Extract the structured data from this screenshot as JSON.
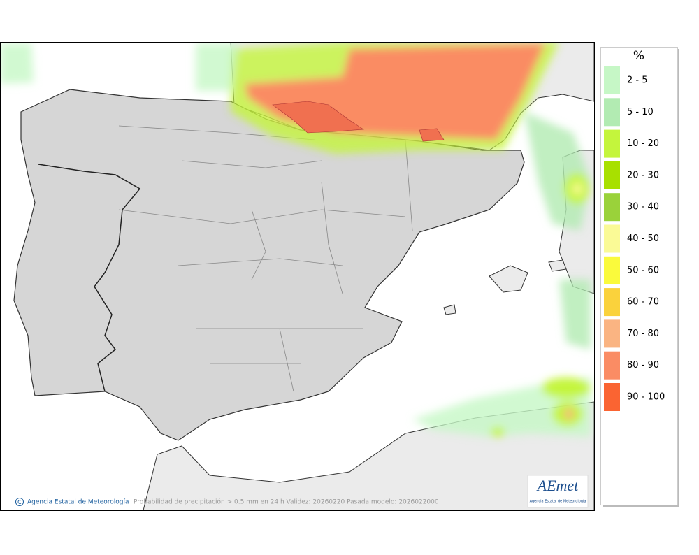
{
  "legend": {
    "title": "%",
    "items": [
      {
        "label": "2 - 5",
        "color": "#c6f7c6"
      },
      {
        "label": "5 - 10",
        "color": "#b2ebb2"
      },
      {
        "label": "10 - 20",
        "color": "#c4f53c"
      },
      {
        "label": "20 - 30",
        "color": "#a8e000"
      },
      {
        "label": "30 - 40",
        "color": "#9ad23a"
      },
      {
        "label": "40 - 50",
        "color": "#fafa96"
      },
      {
        "label": "50 - 60",
        "color": "#fafa3c"
      },
      {
        "label": "60 - 70",
        "color": "#fad23c"
      },
      {
        "label": "70 - 80",
        "color": "#fab482"
      },
      {
        "label": "80 - 90",
        "color": "#fa8c64"
      },
      {
        "label": "90 - 100",
        "color": "#fa6432"
      }
    ]
  },
  "footer": {
    "copyright": "Agencia Estatal de Meteorología",
    "caption": "Probabilidad de precipitación > 0.5 mm en 24 h Validez: 20260220 Pasada modelo: 2026022000"
  },
  "logo": {
    "text": "AEmet",
    "subtitle": "Agencia Estatal de Meteorología"
  }
}
